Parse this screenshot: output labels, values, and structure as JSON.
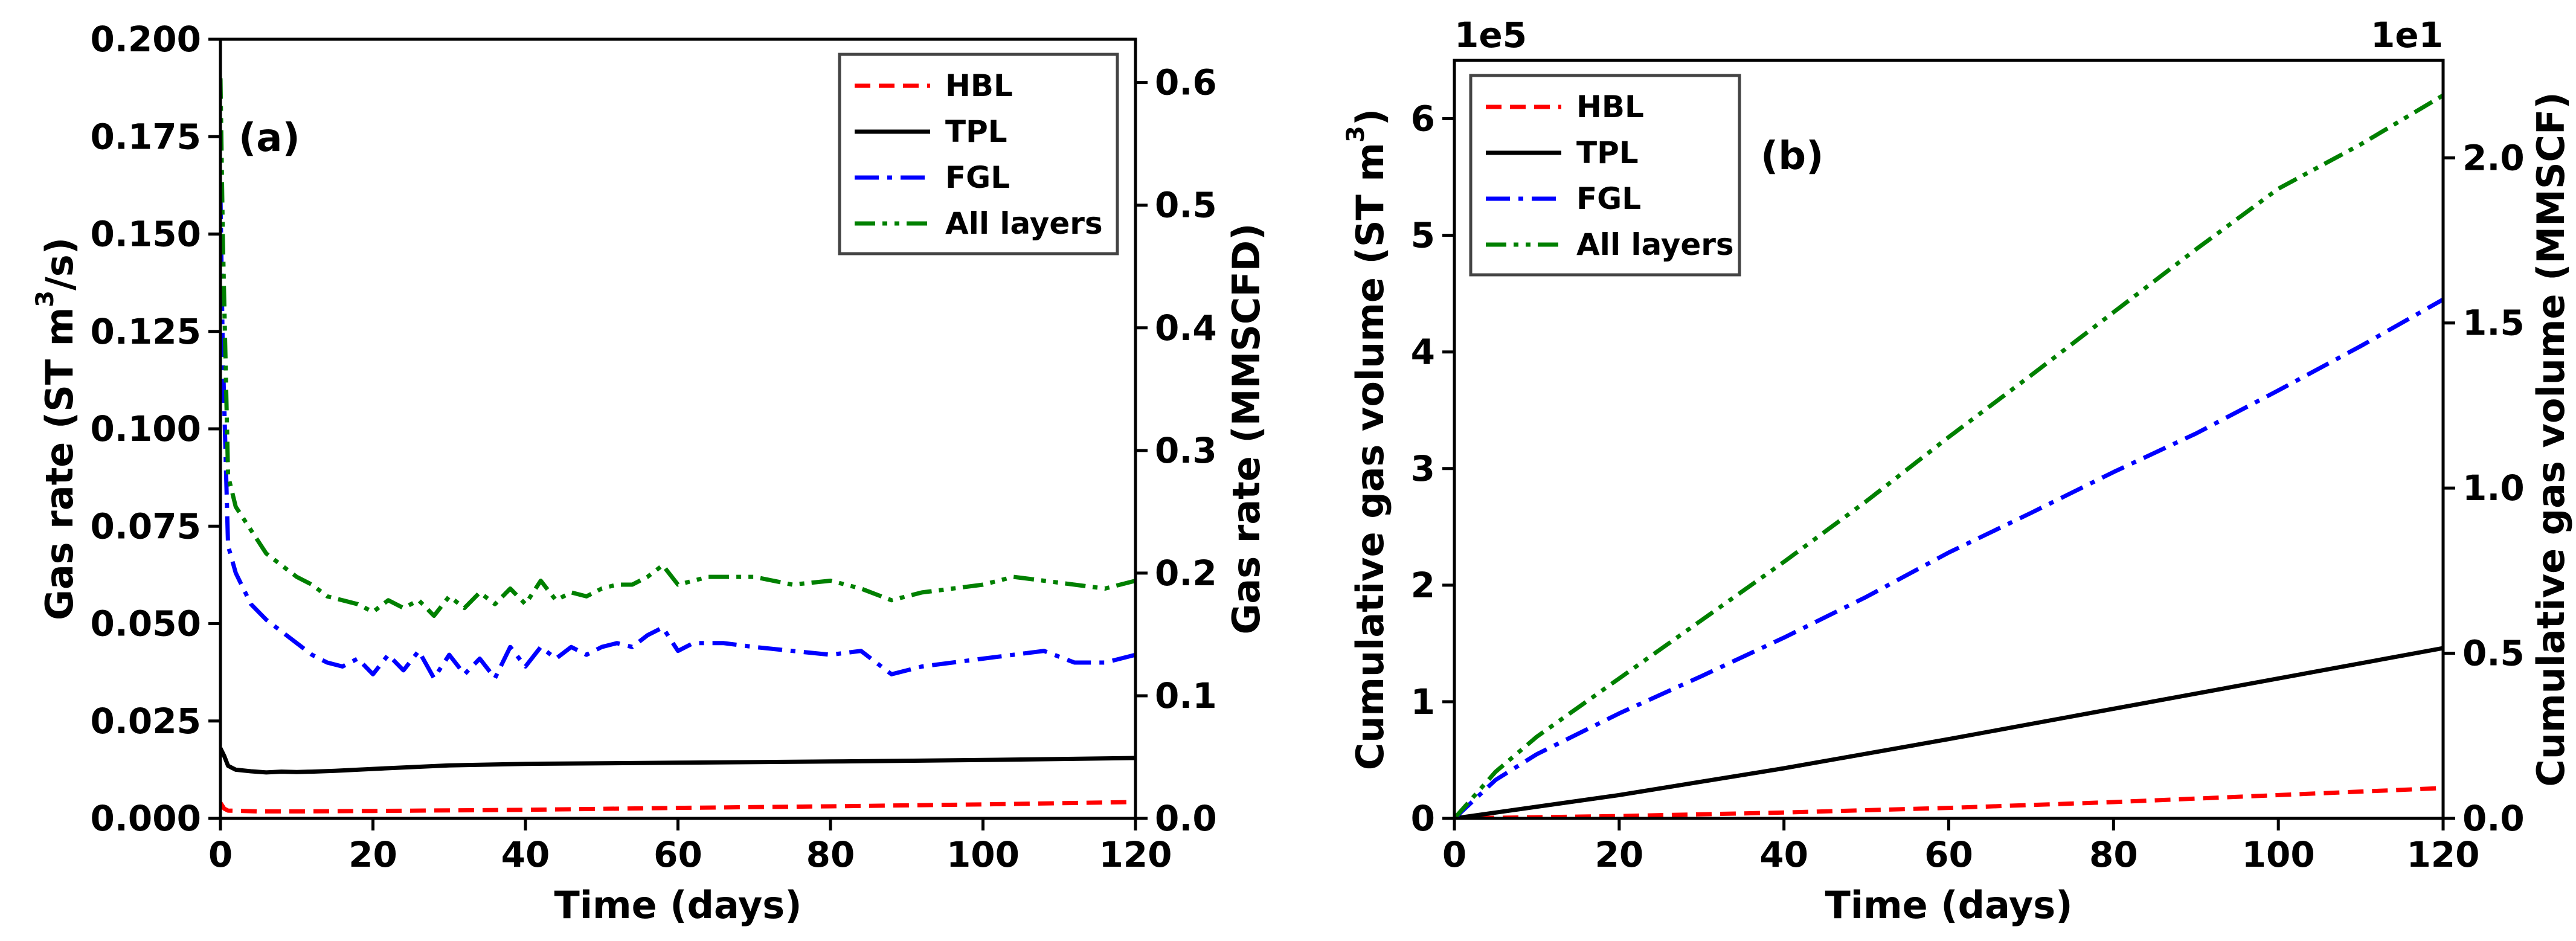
{
  "chart_data": [
    {
      "type": "line",
      "panel_label": "(a)",
      "xlabel": "Time (days)",
      "ylabel": {
        "base": "Gas rate (ST m",
        "sup": "3",
        "tail": "/s)"
      },
      "y2label": "Gas rate (MMSCFD)",
      "xlim": [
        0,
        120
      ],
      "ylim": [
        0,
        0.2
      ],
      "y2lim": [
        0,
        0.6353
      ],
      "xticks": [
        0,
        20,
        40,
        60,
        80,
        100,
        120
      ],
      "xtick_labels": [
        "0",
        "20",
        "40",
        "60",
        "80",
        "100",
        "120"
      ],
      "yticks": [
        0,
        0.025,
        0.05,
        0.075,
        0.1,
        0.125,
        0.15,
        0.175,
        0.2
      ],
      "ytick_labels": [
        "0.000",
        "0.025",
        "0.050",
        "0.075",
        "0.100",
        "0.125",
        "0.150",
        "0.175",
        "0.200"
      ],
      "y2ticks": [
        0,
        0.1,
        0.2,
        0.3,
        0.4,
        0.5,
        0.6
      ],
      "y2tick_labels": [
        "0.0",
        "0.1",
        "0.2",
        "0.3",
        "0.4",
        "0.5",
        "0.6"
      ],
      "legend_position": "top-right",
      "series": [
        {
          "name": "HBL",
          "color": "#ff0000",
          "dash": "dashed",
          "x": [
            0,
            0.5,
            1,
            5,
            10,
            20,
            40,
            60,
            80,
            100,
            120
          ],
          "y": [
            0.004,
            0.0025,
            0.002,
            0.0018,
            0.0018,
            0.0019,
            0.0022,
            0.0027,
            0.0031,
            0.0036,
            0.0042
          ]
        },
        {
          "name": "TPL",
          "color": "#000000",
          "dash": "solid",
          "x": [
            0,
            0.5,
            1,
            2,
            4,
            6,
            8,
            10,
            12,
            15,
            20,
            30,
            40,
            60,
            80,
            100,
            120
          ],
          "y": [
            0.018,
            0.016,
            0.0135,
            0.0125,
            0.0121,
            0.0118,
            0.012,
            0.0119,
            0.012,
            0.0122,
            0.0127,
            0.0136,
            0.014,
            0.0143,
            0.0146,
            0.015,
            0.0155
          ]
        },
        {
          "name": "FGL",
          "color": "#0000ff",
          "dash": "dashdot",
          "x": [
            0,
            0.3,
            1,
            2,
            4,
            6,
            8,
            10,
            12,
            14,
            16,
            18,
            20,
            22,
            24,
            26,
            28,
            30,
            32,
            34,
            36,
            38,
            40,
            42,
            44,
            46,
            48,
            50,
            52,
            54,
            56,
            58,
            60,
            62,
            64,
            66,
            70,
            75,
            80,
            84,
            88,
            92,
            96,
            100,
            104,
            108,
            112,
            116,
            120
          ],
          "y": [
            0.16,
            0.12,
            0.07,
            0.063,
            0.055,
            0.051,
            0.048,
            0.045,
            0.042,
            0.04,
            0.039,
            0.041,
            0.037,
            0.042,
            0.038,
            0.043,
            0.036,
            0.042,
            0.037,
            0.041,
            0.036,
            0.044,
            0.039,
            0.044,
            0.041,
            0.044,
            0.042,
            0.044,
            0.045,
            0.044,
            0.047,
            0.049,
            0.043,
            0.045,
            0.045,
            0.045,
            0.044,
            0.043,
            0.042,
            0.043,
            0.037,
            0.039,
            0.04,
            0.041,
            0.042,
            0.043,
            0.04,
            0.04,
            0.042
          ]
        },
        {
          "name": "All layers",
          "color": "#008000",
          "dash": "dashdotdot",
          "x": [
            0,
            0.3,
            1,
            2,
            4,
            6,
            8,
            10,
            12,
            14,
            16,
            18,
            20,
            22,
            24,
            26,
            28,
            30,
            32,
            34,
            36,
            38,
            40,
            42,
            44,
            46,
            48,
            50,
            52,
            54,
            56,
            58,
            60,
            62,
            64,
            66,
            70,
            75,
            80,
            84,
            88,
            92,
            96,
            100,
            104,
            108,
            112,
            116,
            120
          ],
          "y": [
            0.19,
            0.15,
            0.088,
            0.08,
            0.074,
            0.068,
            0.065,
            0.062,
            0.06,
            0.057,
            0.056,
            0.055,
            0.053,
            0.056,
            0.054,
            0.056,
            0.052,
            0.057,
            0.054,
            0.058,
            0.055,
            0.059,
            0.055,
            0.061,
            0.056,
            0.058,
            0.057,
            0.059,
            0.06,
            0.06,
            0.062,
            0.065,
            0.06,
            0.061,
            0.062,
            0.062,
            0.062,
            0.06,
            0.061,
            0.059,
            0.056,
            0.058,
            0.059,
            0.06,
            0.062,
            0.061,
            0.06,
            0.059,
            0.061
          ]
        }
      ]
    },
    {
      "type": "line",
      "panel_label": "(b)",
      "xlabel": "Time (days)",
      "ylabel": {
        "base": "Cumulative gas volume (ST m",
        "sup": "3",
        "tail": ")"
      },
      "y2label": "Cumulative gas volume (MMSCF)",
      "offset_left": "1e5",
      "offset_right": "1e1",
      "xlim": [
        0,
        120
      ],
      "ylim": [
        0,
        6.5
      ],
      "y2lim": [
        0,
        2.295
      ],
      "xticks": [
        0,
        20,
        40,
        60,
        80,
        100,
        120
      ],
      "xtick_labels": [
        "0",
        "20",
        "40",
        "60",
        "80",
        "100",
        "120"
      ],
      "yticks": [
        0,
        1,
        2,
        3,
        4,
        5,
        6
      ],
      "ytick_labels": [
        "0",
        "1",
        "2",
        "3",
        "4",
        "5",
        "6"
      ],
      "y2ticks": [
        0,
        0.5,
        1.0,
        1.5,
        2.0
      ],
      "y2tick_labels": [
        "0.0",
        "0.5",
        "1.0",
        "1.5",
        "2.0"
      ],
      "legend_position": "top-left",
      "series": [
        {
          "name": "HBL",
          "color": "#ff0000",
          "dash": "dashed",
          "x": [
            0,
            20,
            40,
            60,
            80,
            100,
            120
          ],
          "y": [
            0,
            0.02,
            0.05,
            0.09,
            0.14,
            0.2,
            0.26
          ]
        },
        {
          "name": "TPL",
          "color": "#000000",
          "dash": "solid",
          "x": [
            0,
            20,
            40,
            60,
            80,
            100,
            120
          ],
          "y": [
            0,
            0.2,
            0.43,
            0.68,
            0.94,
            1.2,
            1.46
          ]
        },
        {
          "name": "FGL",
          "color": "#0000ff",
          "dash": "dashdot",
          "x": [
            0,
            5,
            10,
            20,
            30,
            40,
            50,
            60,
            70,
            80,
            90,
            100,
            110,
            120
          ],
          "y": [
            0,
            0.33,
            0.55,
            0.9,
            1.22,
            1.55,
            1.9,
            2.28,
            2.62,
            2.97,
            3.3,
            3.67,
            4.05,
            4.45
          ]
        },
        {
          "name": "All layers",
          "color": "#008000",
          "dash": "dashdotdot",
          "x": [
            0,
            5,
            10,
            20,
            30,
            40,
            50,
            60,
            70,
            80,
            90,
            100,
            110,
            120
          ],
          "y": [
            0,
            0.4,
            0.7,
            1.2,
            1.7,
            2.2,
            2.72,
            3.27,
            3.8,
            4.34,
            4.88,
            5.4,
            5.78,
            6.2
          ]
        }
      ]
    }
  ]
}
